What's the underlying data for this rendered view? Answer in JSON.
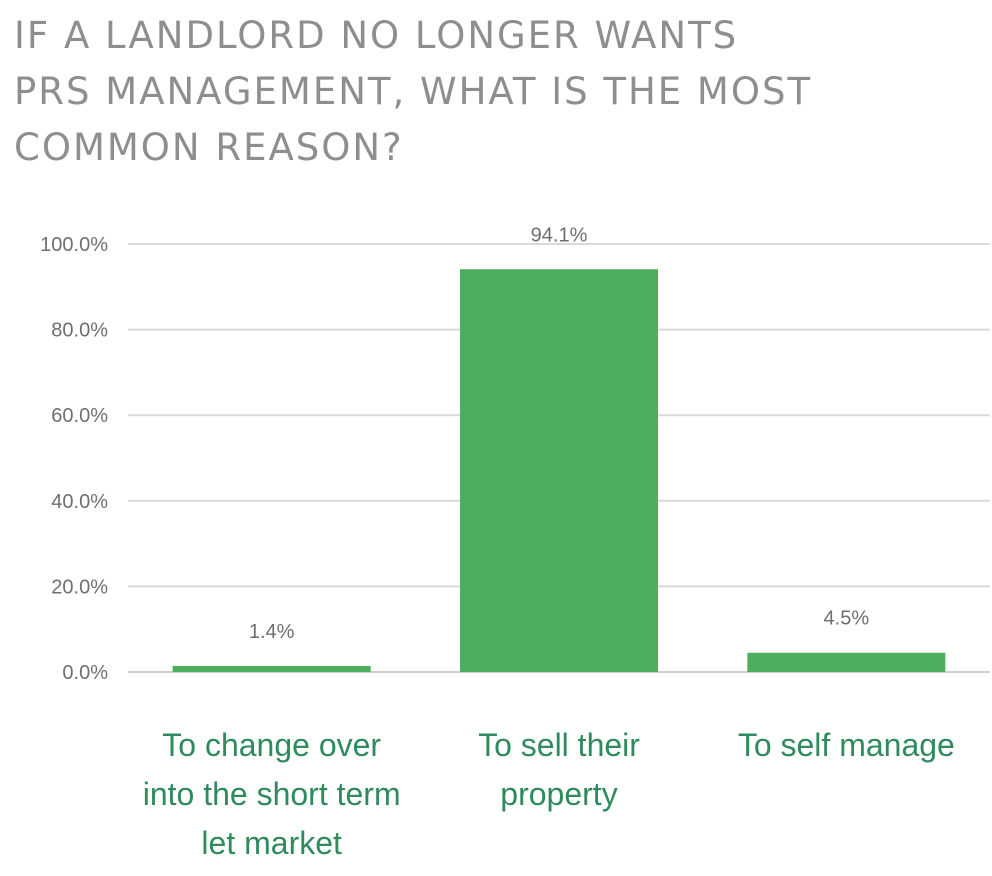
{
  "chart_data": {
    "type": "bar",
    "title": "IF A LANDLORD NO LONGER WANTS\nPRS MANAGEMENT, WHAT IS THE MOST\nCOMMON REASON?",
    "categories": [
      [
        "To change over",
        "into the short term",
        "let market"
      ],
      [
        "To sell their",
        "property"
      ],
      [
        "To self manage"
      ]
    ],
    "values": [
      1.4,
      94.1,
      4.5
    ],
    "data_labels": [
      "1.4%",
      "94.1%",
      "4.5%"
    ],
    "yticks": [
      "0.0%",
      "20.0%",
      "40.0%",
      "60.0%",
      "80.0%",
      "100.0%"
    ],
    "ylim": [
      0,
      100
    ],
    "grid": true,
    "legend": "none",
    "bar_color": "#4caf5e",
    "category_label_color": "#2f8a5c",
    "title_color": "#8e8e8e"
  }
}
